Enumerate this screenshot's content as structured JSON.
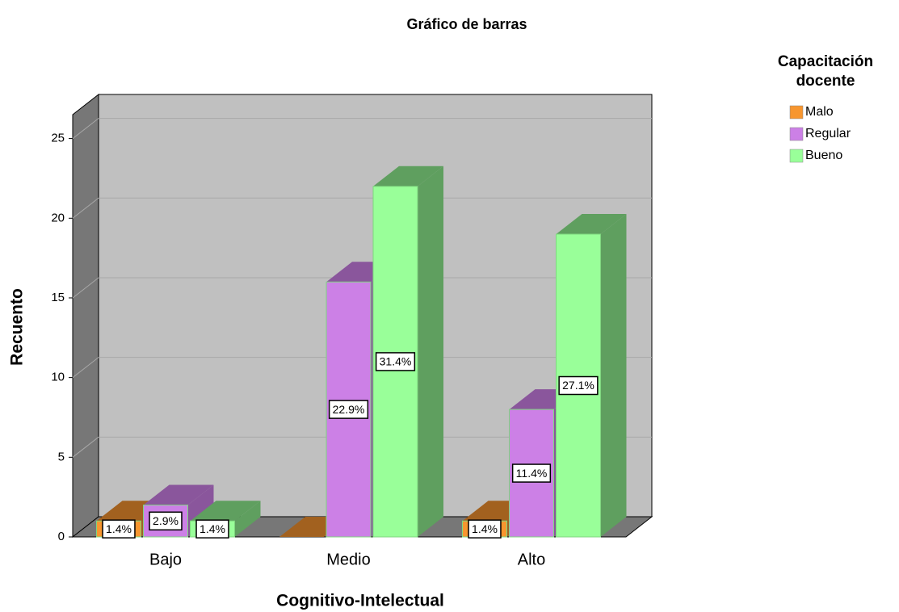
{
  "chart_data": {
    "type": "bar3d",
    "title": "Gráfico de barras",
    "x_label": "Cognitivo-Intelectual",
    "y_label": "Recuento",
    "legend_title": [
      "Capacitación",
      "docente"
    ],
    "categories": [
      "Bajo",
      "Medio",
      "Alto"
    ],
    "series": [
      {
        "name": "Malo",
        "color": "#f7962f",
        "side_color": "#a2611f",
        "values": [
          1,
          0,
          1
        ],
        "value_labels": [
          "1.4%",
          null,
          "1.4%"
        ]
      },
      {
        "name": "Regular",
        "color": "#cc80e6",
        "side_color": "#8a569c",
        "values": [
          2,
          16,
          8
        ],
        "value_labels": [
          "2.9%",
          "22.9%",
          "11.4%"
        ]
      },
      {
        "name": "Bueno",
        "color": "#99ff99",
        "side_color": "#5f9f5f",
        "values": [
          1,
          22,
          19
        ],
        "value_labels": [
          "1.4%",
          "31.4%",
          "27.1%"
        ]
      }
    ],
    "ylim": [
      0,
      26.5
    ],
    "yticks": [
      0,
      5,
      10,
      15,
      20,
      25
    ],
    "grid": true
  }
}
